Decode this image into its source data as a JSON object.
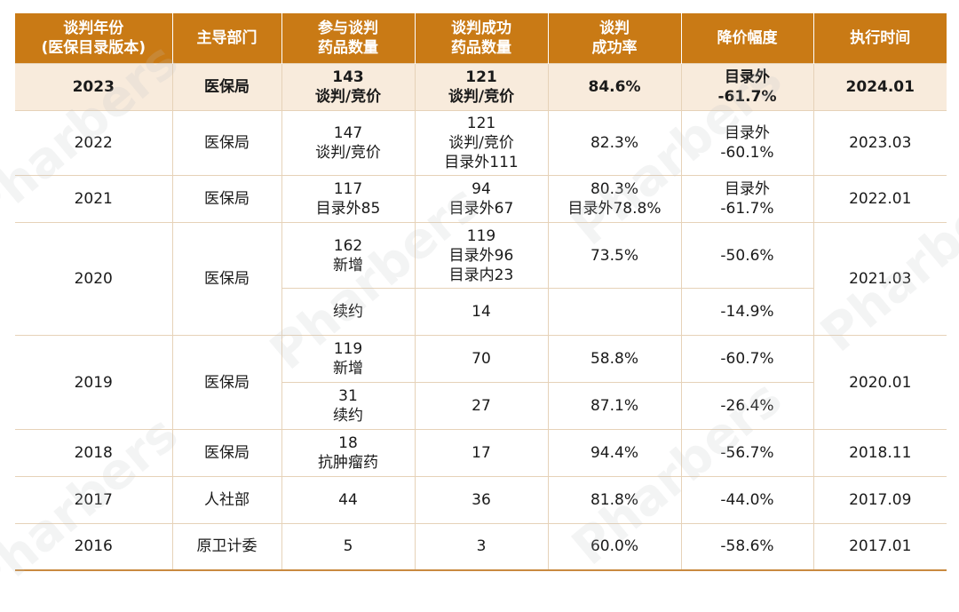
{
  "headers": [
    "谈判年份\n(医保目录版本)",
    "主导部门",
    "参与谈判\n药品数量",
    "谈判成功\n药品数量",
    "谈判\n成功率",
    "降价幅度",
    "执行时间"
  ],
  "r2023": {
    "year": "2023",
    "dept": "医保局",
    "part": "143\n谈判/竞价",
    "succ": "121\n谈判/竞价",
    "rate": "84.6%",
    "cut": "目录外\n-61.7%",
    "time": "2024.01"
  },
  "r2022": {
    "year": "2022",
    "dept": "医保局",
    "part": "147\n谈判/竞价",
    "succ": "121\n谈判/竞价\n目录外111",
    "rate": "82.3%",
    "cut": "目录外\n-60.1%",
    "time": "2023.03"
  },
  "r2021": {
    "year": "2021",
    "dept": "医保局",
    "part": "117\n目录外85",
    "succ": "94\n目录外67",
    "rate": "80.3%\n目录外78.8%",
    "cut": "目录外\n-61.7%",
    "time": "2022.01"
  },
  "r2020": {
    "year": "2020",
    "dept": "医保局",
    "time": "2021.03",
    "a": {
      "part": "162\n新增",
      "succ": "119\n目录外96\n目录内23",
      "rate": "73.5%",
      "cut": "-50.6%"
    },
    "b": {
      "part": "续约",
      "succ": "14",
      "rate": "",
      "cut": "-14.9%"
    }
  },
  "r2019": {
    "year": "2019",
    "dept": "医保局",
    "time": "2020.01",
    "a": {
      "part": "119\n新增",
      "succ": "70",
      "rate": "58.8%",
      "cut": "-60.7%"
    },
    "b": {
      "part": "31\n续约",
      "succ": "27",
      "rate": "87.1%",
      "cut": "-26.4%"
    }
  },
  "r2018": {
    "year": "2018",
    "dept": "医保局",
    "part": "18\n抗肿瘤药",
    "succ": "17",
    "rate": "94.4%",
    "cut": "-56.7%",
    "time": "2018.11"
  },
  "r2017": {
    "year": "2017",
    "dept": "人社部",
    "part": "44",
    "succ": "36",
    "rate": "81.8%",
    "cut": "-44.0%",
    "time": "2017.09"
  },
  "r2016": {
    "year": "2016",
    "dept": "原卫计委",
    "part": "5",
    "succ": "3",
    "rate": "60.0%",
    "cut": "-58.6%",
    "time": "2017.01"
  },
  "watermark": "Pharbers"
}
